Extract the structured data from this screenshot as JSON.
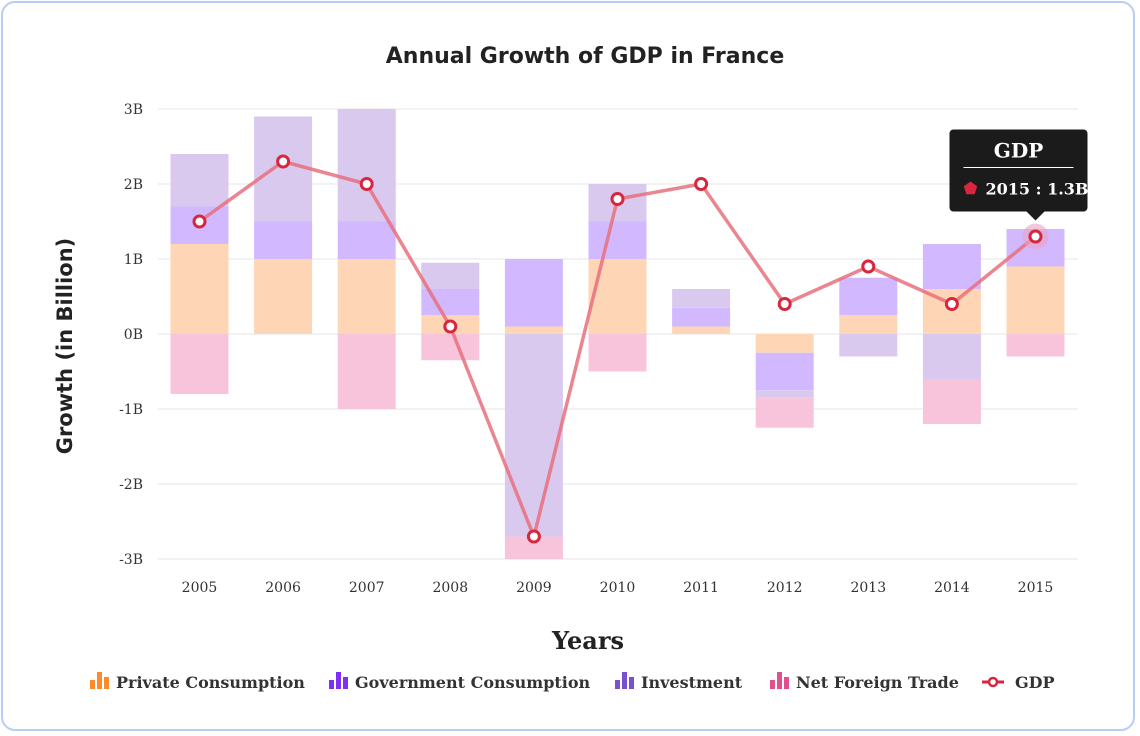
{
  "chart_data": {
    "type": "bar",
    "stacked": true,
    "title": "Annual Growth of GDP in France",
    "xlabel": "Years",
    "ylabel": "Growth (in Billion)",
    "ylim": [
      -3,
      3
    ],
    "ytick_values": [
      -3,
      -2,
      -1,
      0,
      1,
      2,
      3
    ],
    "ytick_labels": [
      "-3B",
      "-2B",
      "-1B",
      "0B",
      "1B",
      "2B",
      "3B"
    ],
    "categories": [
      "2005",
      "2006",
      "2007",
      "2008",
      "2009",
      "2010",
      "2011",
      "2012",
      "2013",
      "2014",
      "2015"
    ],
    "series": [
      {
        "name": "Private Consumption",
        "color": "#ffd6b5",
        "legend_color": "#ff8a2b",
        "values": [
          1.2,
          1.0,
          1.0,
          0.25,
          0.1,
          1.0,
          0.1,
          -0.25,
          0.25,
          0.6,
          0.9
        ]
      },
      {
        "name": "Government Consumption",
        "color": "#d1b8ff",
        "legend_color": "#7b2ff7",
        "values": [
          0.5,
          0.5,
          0.5,
          0.35,
          0.9,
          0.5,
          0.25,
          -0.5,
          0.5,
          0.6,
          0.5
        ]
      },
      {
        "name": "Investment",
        "color": "#d9c9ef",
        "legend_color": "#7a4fd0",
        "values": [
          0.7,
          1.4,
          1.5,
          0.35,
          -2.7,
          0.5,
          0.25,
          -0.1,
          -0.3,
          -0.6,
          0.0
        ]
      },
      {
        "name": "Net Foreign Trade",
        "color": "#f7c4dc",
        "legend_color": "#e0508f",
        "values": [
          -0.8,
          0.0,
          -1.0,
          -0.35,
          -0.3,
          -0.5,
          0.0,
          -0.4,
          0.0,
          -0.6,
          -0.3
        ]
      }
    ],
    "line": {
      "name": "GDP",
      "color": "#e8707c",
      "marker_color": "#d7263d",
      "values": [
        1.5,
        2.3,
        2.0,
        0.1,
        -2.7,
        1.8,
        2.0,
        0.4,
        0.9,
        0.4,
        1.3
      ]
    },
    "legend_position": "bottom",
    "tooltip": {
      "title": "GDP",
      "label": "2015 : 1.3B",
      "category": "2015"
    }
  }
}
